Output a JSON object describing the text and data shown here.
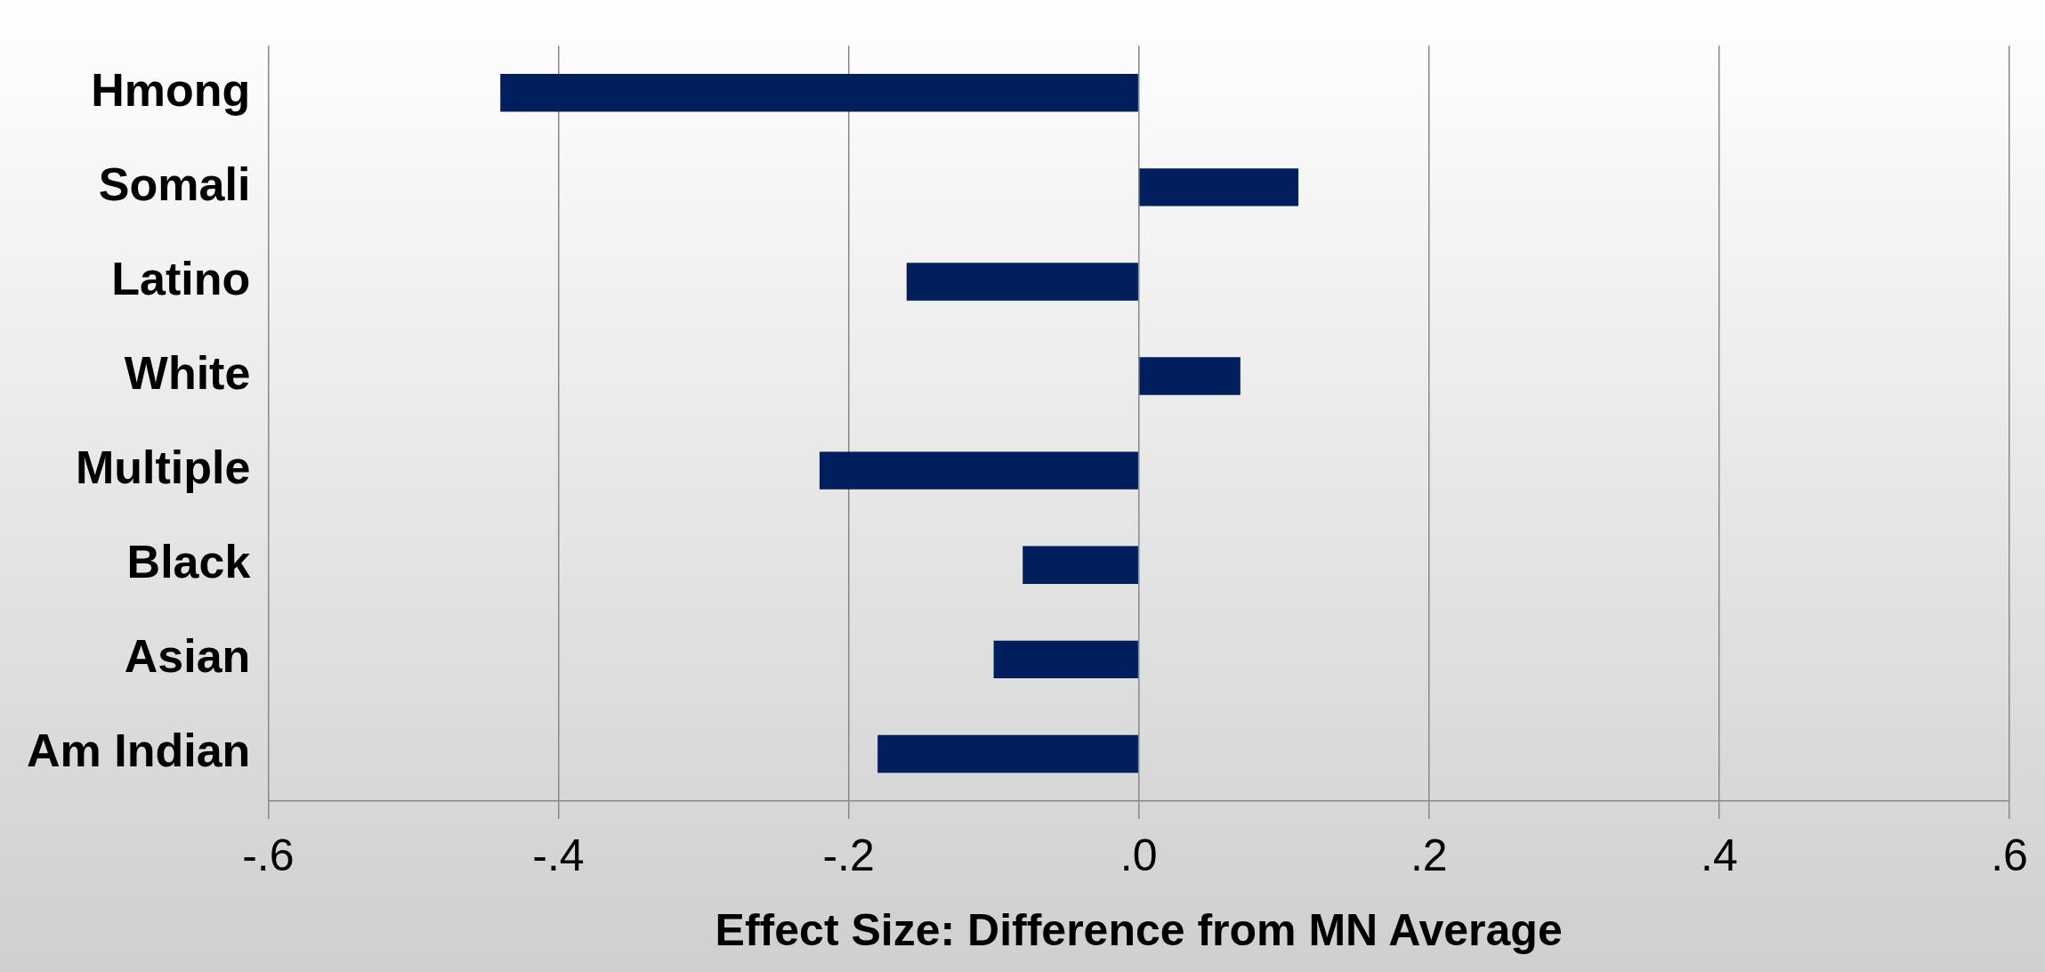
{
  "chart_data": {
    "type": "bar",
    "orientation": "horizontal",
    "xlabel": "Effect Size: Difference from MN Average",
    "categories": [
      "Hmong",
      "Somali",
      "Latino",
      "White",
      "Multiple",
      "Black",
      "Asian",
      "Am Indian"
    ],
    "values": [
      -0.44,
      0.11,
      -0.16,
      0.07,
      -0.22,
      -0.08,
      -0.1,
      -0.18
    ],
    "color": "#001f5c",
    "xlim": [
      -0.6,
      0.6
    ],
    "xticks": [
      {
        "value": -0.6,
        "label": "-.6"
      },
      {
        "value": -0.4,
        "label": "-.4"
      },
      {
        "value": -0.2,
        "label": "-.2"
      },
      {
        "value": 0,
        "label": ".0"
      },
      {
        "value": 0.2,
        "label": ".2"
      },
      {
        "value": 0.4,
        "label": ".4"
      },
      {
        "value": 0.6,
        "label": ".6"
      }
    ],
    "grid": "x",
    "legend": false
  }
}
